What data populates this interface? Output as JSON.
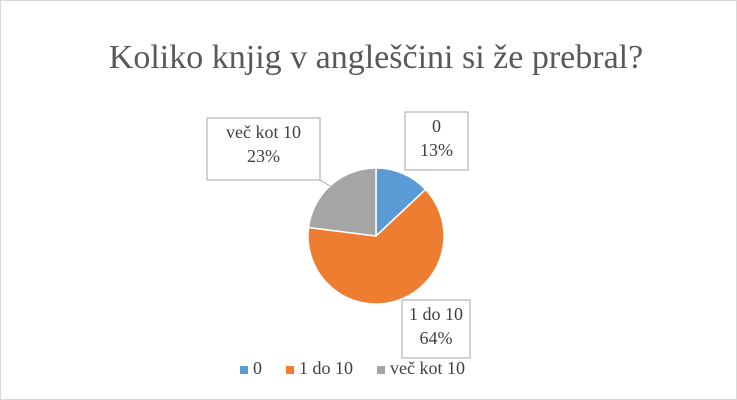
{
  "chart_data": {
    "type": "pie",
    "title": "Koliko knjig v angleščini si že prebral?",
    "categories": [
      "0",
      "1 do 10",
      "več kot 10"
    ],
    "values": [
      13,
      64,
      23
    ],
    "value_labels": [
      "13%",
      "64%",
      "23%"
    ],
    "colors": [
      "#5b9bd5",
      "#ed7d31",
      "#a5a5a5"
    ],
    "legend": "bottom"
  }
}
